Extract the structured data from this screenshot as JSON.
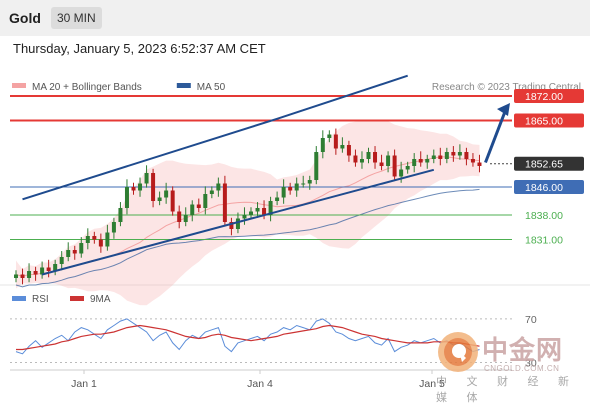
{
  "header": {
    "asset": "Gold",
    "timeframe": "30 MIN",
    "datetime": "Thursday, January 5, 2023 6:52:37 AM CET"
  },
  "watermark": {
    "brand": "中金网",
    "url": "CNGOLD.COM.CN",
    "tagline": "中 文 财 经 新 媒 体"
  },
  "colors": {
    "up": "#2e7d32",
    "down": "#b71c1c",
    "resistance": "#e53935",
    "support_blue": "#3f6db5",
    "support_green": "#4caf50",
    "channel": "#1f4b8e",
    "bollinger": "#f4a3a3",
    "ma50": "#2d5a9a",
    "rsi": "#5b8dd9",
    "rsi_ma": "#cc3333",
    "last_price_bg": "#333333"
  },
  "chart_data": [
    {
      "type": "candlestick",
      "legend": [
        {
          "name": "MA 20 + Bollinger Bands",
          "color": "#f4a3a3"
        },
        {
          "name": "MA 50",
          "color": "#2d5a9a"
        }
      ],
      "credit": "Research © 2023 Trading Central",
      "x_ticks": [
        "Jan 1",
        "Jan 4",
        "Jan 5"
      ],
      "ylim": [
        1818,
        1878
      ],
      "levels": [
        {
          "label": "1872.00",
          "value": 1872.0,
          "kind": "resistance"
        },
        {
          "label": "1865.00",
          "value": 1865.0,
          "kind": "resistance"
        },
        {
          "label": "1852.65",
          "value": 1852.65,
          "kind": "last"
        },
        {
          "label": "1846.00",
          "value": 1846.0,
          "kind": "pivot"
        },
        {
          "label": "1838.00",
          "value": 1838.0,
          "kind": "support"
        },
        {
          "label": "1831.00",
          "value": 1831.0,
          "kind": "support"
        }
      ],
      "close": [
        1821,
        1820,
        1822,
        1821,
        1823,
        1822,
        1824,
        1826,
        1828,
        1827,
        1830,
        1832,
        1831,
        1829,
        1833,
        1836,
        1840,
        1846,
        1845,
        1847,
        1850,
        1842,
        1843,
        1845,
        1839,
        1836,
        1838,
        1841,
        1840,
        1844,
        1845,
        1847,
        1836,
        1834,
        1837,
        1838,
        1839,
        1840,
        1838,
        1842,
        1843,
        1846,
        1845,
        1847,
        1847,
        1848,
        1856,
        1860,
        1861,
        1857,
        1858,
        1855,
        1853,
        1854,
        1856,
        1853,
        1852,
        1855,
        1849,
        1851,
        1852,
        1854,
        1853,
        1854,
        1855,
        1854,
        1856,
        1855,
        1856,
        1854,
        1853,
        1852
      ],
      "channel": {
        "upper": [
          [
            1,
            1842.5
          ],
          [
            40,
            1865.5
          ],
          [
            60,
            1877.8
          ]
        ],
        "lower": [
          [
            4,
            1821.0
          ],
          [
            64,
            1850.9
          ]
        ]
      },
      "projection": {
        "from": 1853,
        "to": 1870
      }
    },
    {
      "type": "line",
      "legend": [
        {
          "name": "RSI",
          "color": "#5b8dd9"
        },
        {
          "name": "9MA",
          "color": "#cc3333"
        }
      ],
      "ylim": [
        25,
        80
      ],
      "levels": [
        {
          "label": "70",
          "value": 70
        },
        {
          "label": "30",
          "value": 30
        }
      ],
      "rsi": [
        40,
        38,
        45,
        50,
        44,
        48,
        52,
        55,
        50,
        58,
        62,
        60,
        56,
        52,
        60,
        64,
        68,
        70,
        66,
        62,
        58,
        50,
        55,
        58,
        48,
        42,
        50,
        55,
        52,
        58,
        60,
        62,
        45,
        40,
        48,
        50,
        52,
        54,
        50,
        56,
        58,
        62,
        60,
        64,
        62,
        60,
        68,
        70,
        66,
        58,
        56,
        52,
        50,
        52,
        54,
        48,
        46,
        52,
        40,
        44,
        46,
        50,
        48,
        50,
        52,
        48,
        50,
        46,
        48,
        44,
        40,
        42
      ],
      "rsi_ma": [
        42,
        42,
        43,
        44,
        45,
        46,
        47,
        49,
        50,
        52,
        54,
        55,
        56,
        56,
        57,
        58,
        60,
        62,
        63,
        64,
        63,
        62,
        61,
        60,
        58,
        56,
        54,
        53,
        52,
        53,
        55,
        56,
        55,
        53,
        52,
        51,
        50,
        51,
        52,
        53,
        54,
        56,
        57,
        58,
        59,
        60,
        61,
        63,
        64,
        63,
        62,
        60,
        58,
        56,
        55,
        54,
        52,
        51,
        50,
        49,
        48,
        48,
        48,
        48,
        49,
        49,
        49,
        48,
        48,
        47,
        46,
        45
      ]
    }
  ]
}
